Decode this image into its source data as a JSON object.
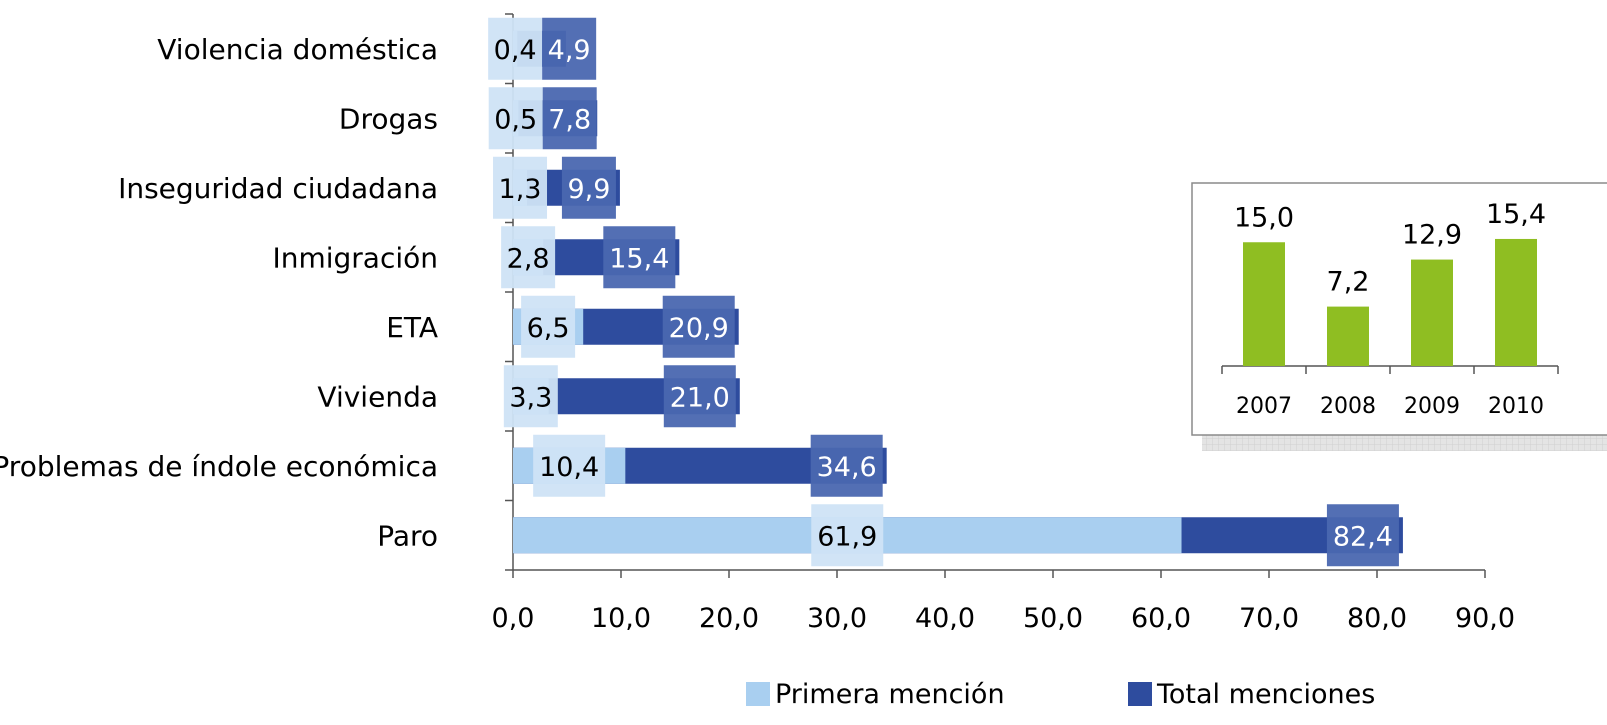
{
  "chart_data": [
    {
      "type": "bar",
      "orientation": "horizontal",
      "categories": [
        "Violencia doméstica",
        "Drogas",
        "Inseguridad ciudadana",
        "Inmigración",
        "ETA",
        "Vivienda",
        "Problemas de índole económica",
        "Paro"
      ],
      "series": [
        {
          "name": "Primera mención",
          "values": [
            0.4,
            0.5,
            1.3,
            2.8,
            6.5,
            3.3,
            10.4,
            61.9
          ],
          "labels": [
            "0,4",
            "0,5",
            "1,3",
            "2,8",
            "6,5",
            "3,3",
            "10,4",
            "61,9"
          ],
          "color": "#a9cff0"
        },
        {
          "name": "Total menciones",
          "values": [
            4.9,
            7.8,
            9.9,
            15.4,
            20.9,
            21.0,
            34.6,
            82.4
          ],
          "labels": [
            "4,9",
            "7,8",
            "9,9",
            "15,4",
            "20,9",
            "21,0",
            "34,6",
            "82,4"
          ],
          "color": "#2e4c9e"
        }
      ],
      "xlim": [
        0,
        90
      ],
      "xticks": [
        0,
        10,
        20,
        30,
        40,
        50,
        60,
        70,
        80,
        90
      ],
      "xtick_labels": [
        "0,0",
        "10,0",
        "20,0",
        "30,0",
        "40,0",
        "50,0",
        "60,0",
        "70,0",
        "80,0",
        "90,0"
      ],
      "legend_position": "bottom",
      "grid": false
    },
    {
      "type": "bar",
      "categories": [
        "2007",
        "2008",
        "2009",
        "2010"
      ],
      "values": [
        15.0,
        7.2,
        12.9,
        15.4
      ],
      "labels": [
        "15,0",
        "7,2",
        "12,9",
        "15,4"
      ],
      "color": "#8fbe22",
      "ylim": [
        0,
        18
      ],
      "grid": false
    }
  ],
  "colors": {
    "label_box_light": "#cfe3f6",
    "label_box_dark": "#4a67b0",
    "axis": "#555555",
    "text": "#000000"
  }
}
